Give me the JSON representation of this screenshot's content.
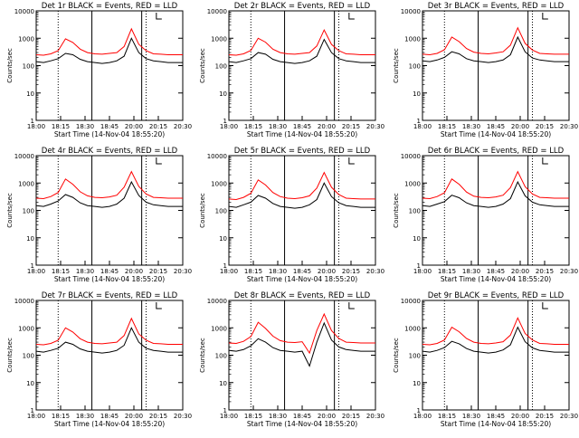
{
  "colors": {
    "events": "#000000",
    "lld": "#ff0000"
  },
  "xticks": [
    "18:00",
    "18:15",
    "18:30",
    "18:45",
    "20:00",
    "20:15",
    "20:30"
  ],
  "yticks": [
    "1",
    "10",
    "100",
    "1000",
    "10000"
  ],
  "ylabel": "Counts/sec",
  "xlabel": "Start Time (14-Nov-04 18:55:20)",
  "chart_data": [
    {
      "type": "line",
      "title": "Det 1r BLACK = Events, RED = LLD",
      "xlabel": "Start Time (14-Nov-04 18:55:20)",
      "ylabel": "Counts/sec",
      "yscale": "log",
      "ylim": [
        1,
        10000
      ],
      "x": [
        0,
        0.05,
        0.1,
        0.15,
        0.2,
        0.25,
        0.3,
        0.35,
        0.4,
        0.45,
        0.5,
        0.55,
        0.6,
        0.65,
        0.7,
        0.75,
        0.8,
        0.85,
        0.9,
        0.95,
        1
      ],
      "series": [
        {
          "name": "Events",
          "values": [
            140,
            130,
            150,
            180,
            280,
            250,
            170,
            140,
            130,
            120,
            130,
            150,
            220,
            1000,
            300,
            180,
            150,
            140,
            130,
            130,
            130
          ]
        },
        {
          "name": "LLD",
          "values": [
            250,
            240,
            270,
            350,
            950,
            700,
            400,
            300,
            270,
            260,
            280,
            300,
            500,
            2200,
            600,
            350,
            270,
            260,
            250,
            250,
            250
          ]
        }
      ]
    },
    {
      "type": "line",
      "title": "Det 2r BLACK = Events, RED = LLD",
      "xlabel": "Start Time (14-Nov-04 18:55:20)",
      "ylabel": "Counts/sec",
      "yscale": "log",
      "ylim": [
        1,
        10000
      ],
      "x": [
        0,
        0.05,
        0.1,
        0.15,
        0.2,
        0.25,
        0.3,
        0.35,
        0.4,
        0.45,
        0.5,
        0.55,
        0.6,
        0.65,
        0.7,
        0.75,
        0.8,
        0.85,
        0.9,
        0.95,
        1
      ],
      "series": [
        {
          "name": "Events",
          "values": [
            140,
            130,
            150,
            180,
            300,
            260,
            170,
            140,
            130,
            120,
            130,
            150,
            220,
            900,
            300,
            180,
            150,
            140,
            130,
            130,
            130
          ]
        },
        {
          "name": "LLD",
          "values": [
            250,
            240,
            270,
            360,
            1000,
            720,
            400,
            300,
            270,
            260,
            280,
            300,
            520,
            2000,
            600,
            350,
            270,
            260,
            250,
            250,
            250
          ]
        }
      ]
    },
    {
      "type": "line",
      "title": "Det 3r BLACK = Events, RED = LLD",
      "xlabel": "Start Time (14-Nov-04 18:55:20)",
      "ylabel": "Counts/sec",
      "yscale": "log",
      "ylim": [
        1,
        10000
      ],
      "x": [
        0,
        0.05,
        0.1,
        0.15,
        0.2,
        0.25,
        0.3,
        0.35,
        0.4,
        0.45,
        0.5,
        0.55,
        0.6,
        0.65,
        0.7,
        0.75,
        0.8,
        0.85,
        0.9,
        0.95,
        1
      ],
      "series": [
        {
          "name": "Events",
          "values": [
            150,
            140,
            160,
            200,
            320,
            270,
            180,
            150,
            140,
            130,
            140,
            160,
            250,
            1100,
            320,
            190,
            160,
            150,
            140,
            140,
            140
          ]
        },
        {
          "name": "LLD",
          "values": [
            260,
            250,
            280,
            380,
            1100,
            750,
            420,
            310,
            280,
            270,
            290,
            320,
            560,
            2400,
            650,
            370,
            280,
            270,
            260,
            260,
            260
          ]
        }
      ]
    },
    {
      "type": "line",
      "title": "Det 4r BLACK = Events, RED = LLD",
      "xlabel": "Start Time (14-Nov-04 18:55:20)",
      "ylabel": "Counts/sec",
      "yscale": "log",
      "ylim": [
        1,
        10000
      ],
      "x": [
        0,
        0.05,
        0.1,
        0.15,
        0.2,
        0.25,
        0.3,
        0.35,
        0.4,
        0.45,
        0.5,
        0.55,
        0.6,
        0.65,
        0.7,
        0.75,
        0.8,
        0.85,
        0.9,
        0.95,
        1
      ],
      "series": [
        {
          "name": "Events",
          "values": [
            150,
            140,
            170,
            220,
            380,
            300,
            190,
            150,
            140,
            130,
            140,
            170,
            280,
            1100,
            350,
            200,
            160,
            150,
            140,
            140,
            140
          ]
        },
        {
          "name": "LLD",
          "values": [
            280,
            270,
            320,
            450,
            1400,
            900,
            480,
            340,
            300,
            290,
            310,
            360,
            700,
            2600,
            750,
            400,
            300,
            290,
            280,
            280,
            280
          ]
        }
      ]
    },
    {
      "type": "line",
      "title": "Det 5r BLACK = Events, RED = LLD",
      "xlabel": "Start Time (14-Nov-04 18:55:20)",
      "ylabel": "Counts/sec",
      "yscale": "log",
      "ylim": [
        1,
        10000
      ],
      "x": [
        0,
        0.05,
        0.1,
        0.15,
        0.2,
        0.25,
        0.3,
        0.35,
        0.4,
        0.45,
        0.5,
        0.55,
        0.6,
        0.65,
        0.7,
        0.75,
        0.8,
        0.85,
        0.9,
        0.95,
        1
      ],
      "series": [
        {
          "name": "Events",
          "values": [
            140,
            130,
            160,
            200,
            350,
            280,
            180,
            140,
            130,
            120,
            130,
            160,
            250,
            1000,
            320,
            190,
            150,
            140,
            130,
            130,
            130
          ]
        },
        {
          "name": "LLD",
          "values": [
            260,
            250,
            300,
            420,
            1300,
            850,
            450,
            320,
            280,
            270,
            290,
            340,
            650,
            2400,
            700,
            380,
            280,
            270,
            260,
            260,
            260
          ]
        }
      ]
    },
    {
      "type": "line",
      "title": "Det 6r BLACK = Events, RED = LLD",
      "xlabel": "Start Time (14-Nov-04 18:55:20)",
      "ylabel": "Counts/sec",
      "yscale": "log",
      "ylim": [
        1,
        10000
      ],
      "x": [
        0,
        0.05,
        0.1,
        0.15,
        0.2,
        0.25,
        0.3,
        0.35,
        0.4,
        0.45,
        0.5,
        0.55,
        0.6,
        0.65,
        0.7,
        0.75,
        0.8,
        0.85,
        0.9,
        0.95,
        1
      ],
      "series": [
        {
          "name": "Events",
          "values": [
            150,
            140,
            170,
            210,
            360,
            290,
            190,
            150,
            140,
            130,
            140,
            170,
            270,
            1100,
            340,
            200,
            160,
            150,
            140,
            140,
            140
          ]
        },
        {
          "name": "LLD",
          "values": [
            280,
            270,
            320,
            440,
            1400,
            900,
            470,
            330,
            300,
            290,
            310,
            360,
            680,
            2600,
            740,
            400,
            300,
            290,
            280,
            280,
            280
          ]
        }
      ]
    },
    {
      "type": "line",
      "title": "Det 7r BLACK = Events, RED = LLD",
      "xlabel": "Start Time (14-Nov-04 18:55:20)",
      "ylabel": "Counts/sec",
      "yscale": "log",
      "ylim": [
        1,
        10000
      ],
      "x": [
        0,
        0.05,
        0.1,
        0.15,
        0.2,
        0.25,
        0.3,
        0.35,
        0.4,
        0.45,
        0.5,
        0.55,
        0.6,
        0.65,
        0.7,
        0.75,
        0.8,
        0.85,
        0.9,
        0.95,
        1
      ],
      "series": [
        {
          "name": "Events",
          "values": [
            140,
            130,
            150,
            180,
            300,
            250,
            170,
            140,
            130,
            120,
            130,
            150,
            230,
            1000,
            300,
            180,
            150,
            140,
            130,
            130,
            130
          ]
        },
        {
          "name": "LLD",
          "values": [
            250,
            240,
            270,
            350,
            1000,
            700,
            400,
            300,
            270,
            260,
            280,
            300,
            520,
            2200,
            600,
            350,
            270,
            260,
            250,
            250,
            250
          ]
        }
      ]
    },
    {
      "type": "line",
      "title": "Det 8r BLACK = Events, RED = LLD",
      "xlabel": "Start Time (14-Nov-04 18:55:20)",
      "ylabel": "Counts/sec",
      "yscale": "log",
      "ylim": [
        1,
        10000
      ],
      "x": [
        0,
        0.05,
        0.1,
        0.15,
        0.2,
        0.25,
        0.3,
        0.35,
        0.4,
        0.45,
        0.5,
        0.55,
        0.6,
        0.65,
        0.7,
        0.75,
        0.8,
        0.85,
        0.9,
        0.95,
        1
      ],
      "series": [
        {
          "name": "Events",
          "values": [
            150,
            140,
            160,
            220,
            400,
            300,
            190,
            150,
            140,
            130,
            140,
            40,
            300,
            1500,
            360,
            200,
            160,
            150,
            140,
            140,
            140
          ]
        },
        {
          "name": "LLD",
          "values": [
            280,
            270,
            320,
            480,
            1600,
            950,
            500,
            340,
            300,
            290,
            310,
            120,
            800,
            3200,
            800,
            410,
            300,
            290,
            280,
            280,
            280
          ]
        }
      ]
    },
    {
      "type": "line",
      "title": "Det 9r BLACK = Events, RED = LLD",
      "xlabel": "Start Time (14-Nov-04 18:55:20)",
      "ylabel": "Counts/sec",
      "yscale": "log",
      "ylim": [
        1,
        10000
      ],
      "x": [
        0,
        0.05,
        0.1,
        0.15,
        0.2,
        0.25,
        0.3,
        0.35,
        0.4,
        0.45,
        0.5,
        0.55,
        0.6,
        0.65,
        0.7,
        0.75,
        0.8,
        0.85,
        0.9,
        0.95,
        1
      ],
      "series": [
        {
          "name": "Events",
          "values": [
            140,
            130,
            150,
            190,
            320,
            260,
            175,
            140,
            130,
            120,
            130,
            155,
            240,
            1050,
            310,
            185,
            150,
            140,
            130,
            130,
            130
          ]
        },
        {
          "name": "LLD",
          "values": [
            250,
            240,
            270,
            360,
            1050,
            720,
            410,
            300,
            270,
            260,
            280,
            310,
            540,
            2300,
            620,
            360,
            270,
            260,
            250,
            250,
            250
          ]
        }
      ]
    }
  ]
}
